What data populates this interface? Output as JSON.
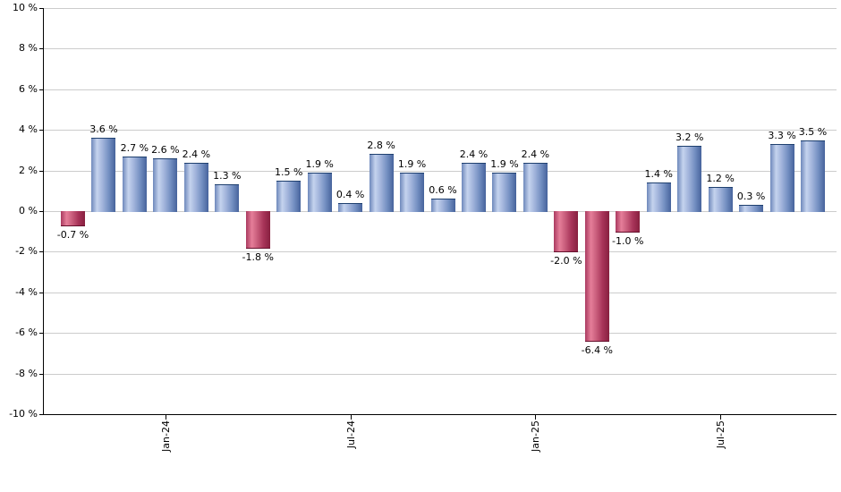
{
  "chart_data": {
    "type": "bar",
    "title": "",
    "xlabel": "",
    "ylabel": "",
    "ylim": [
      -10,
      10
    ],
    "y_tick_step": 2,
    "grid": true,
    "legend": false,
    "y_tick_labels": [
      "10 %",
      "8 %",
      "6 %",
      "4 %",
      "2 %",
      "0 %",
      "-2 %",
      "-4 %",
      "-6 %",
      "-8 %",
      "-10 %"
    ],
    "x_tick_labels": [
      {
        "label": "Jan-24",
        "bar_index": 3
      },
      {
        "label": "Jul-24",
        "bar_index": 9
      },
      {
        "label": "Jan-25",
        "bar_index": 15
      },
      {
        "label": "Jul-25",
        "bar_index": 21
      }
    ],
    "values": [
      -0.7,
      3.6,
      2.7,
      2.6,
      2.4,
      1.3,
      -1.8,
      1.5,
      1.9,
      0.4,
      2.8,
      1.9,
      0.6,
      2.4,
      1.9,
      2.4,
      -2.0,
      -6.4,
      -1.0,
      1.4,
      3.2,
      1.2,
      0.3,
      3.3,
      3.5
    ],
    "bar_labels": [
      "-0.7 %",
      "3.6 %",
      "2.7 %",
      "2.6 %",
      "2.4 %",
      "1.3 %",
      "-1.8 %",
      "1.5 %",
      "1.9 %",
      "0.4 %",
      "2.8 %",
      "1.9 %",
      "0.6 %",
      "2.4 %",
      "1.9 %",
      "2.4 %",
      "-2.0 %",
      "-6.4 %",
      "-1.0 %",
      "1.4 %",
      "3.2 %",
      "1.2 %",
      "0.3 %",
      "3.3 %",
      "3.5 %"
    ],
    "colors": {
      "background": "#ffffff",
      "gridline": "#cccccc",
      "axis": "#000000",
      "label_text": "#000000",
      "positive_bar": {
        "start": "#6e88bb",
        "highlight": "#c5d3ee",
        "mid": "#9fb2da",
        "shade": "#7590c2",
        "end": "#46639c",
        "edge": "#1f406f"
      },
      "negative_bar": {
        "start": "#aa3a60",
        "highlight": "#e57e99",
        "mid": "#c75b7a",
        "shade": "#a83459",
        "end": "#87203f",
        "edge": "#66102d"
      }
    }
  }
}
